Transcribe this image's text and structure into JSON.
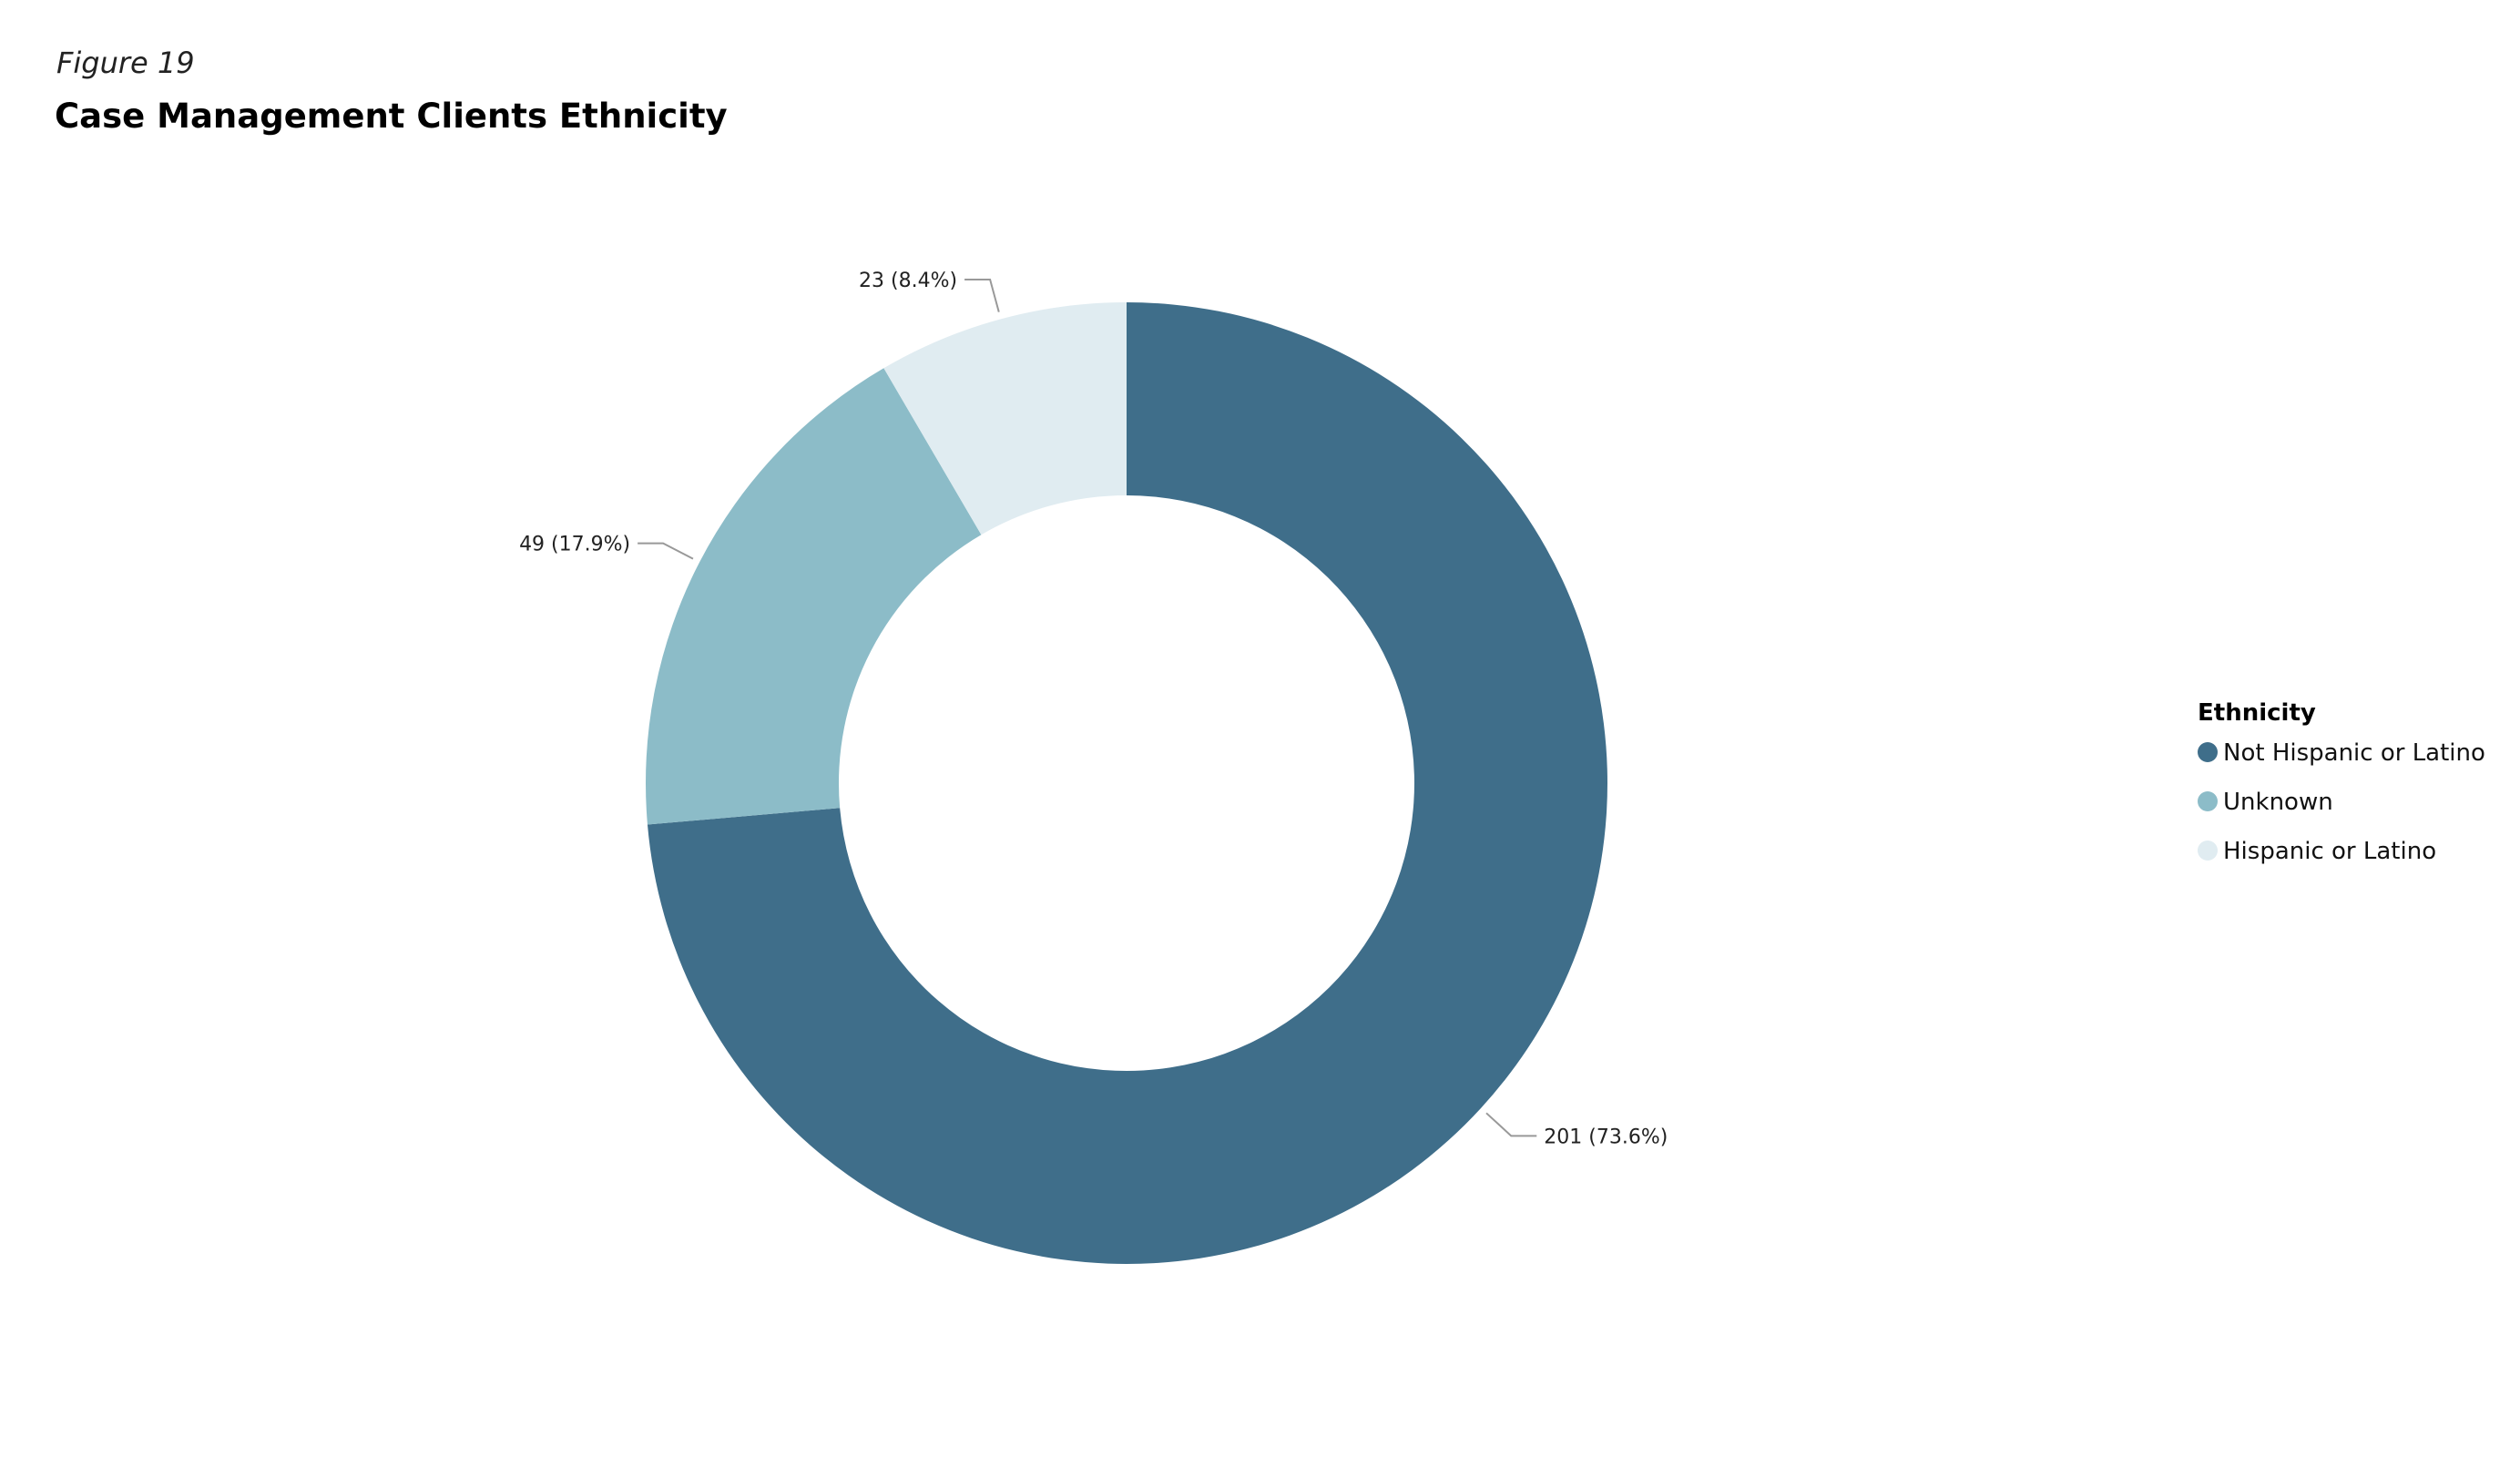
{
  "figure_label": "Figure 19",
  "chart_data": {
    "type": "pie",
    "variant": "donut",
    "title": "Case Management Clients Ethnicity",
    "legend": {
      "title": "Ethnicity",
      "placement": "right"
    },
    "slices": [
      {
        "name": "Not Hispanic or Latino",
        "value": 201,
        "percent": 73.6,
        "label": "201 (73.6%)",
        "color": "#3F6E8A"
      },
      {
        "name": "Unknown",
        "value": 49,
        "percent": 17.9,
        "label": "49 (17.9%)",
        "color": "#8CBCC8"
      },
      {
        "name": "Hispanic or Latino",
        "value": 23,
        "percent": 8.4,
        "label": "23 (8.4%)",
        "color": "#E0ECF1"
      }
    ]
  }
}
